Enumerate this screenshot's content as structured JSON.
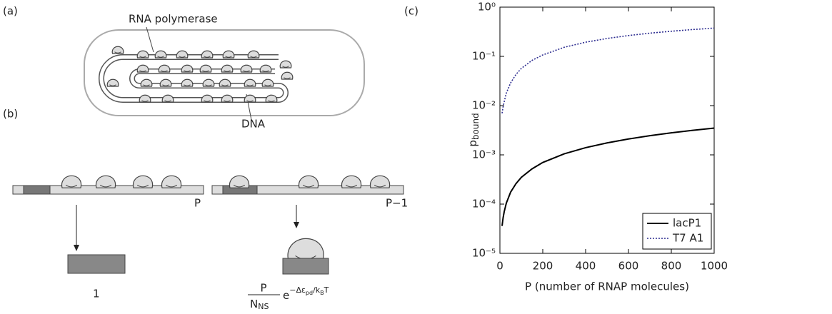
{
  "panels": {
    "a": "(a)",
    "b": "(b)",
    "c": "(c)"
  },
  "diagram_a": {
    "polymerase_label": "RNA polymerase",
    "dna_label": "DNA"
  },
  "diagram_b": {
    "left_count": "P",
    "right_count": "P−1",
    "left_weight": "1",
    "right_weight": {
      "numerator": "P",
      "denominator": {
        "text": "N",
        "subscript": "NS"
      },
      "exponential": {
        "base": "e",
        "parts": [
          {
            "text": "−Δε"
          },
          {
            "sub": "pd"
          },
          {
            "text": "/k"
          },
          {
            "sub": "B"
          },
          {
            "text": "T"
          }
        ]
      }
    }
  },
  "chart_data": {
    "type": "line",
    "x_label": "P (number of RNAP molecules)",
    "y_label": {
      "text": "p",
      "subscript": "bound"
    },
    "log_y": true,
    "legend": "lower right",
    "x": [
      10,
      15,
      20,
      30,
      50,
      75,
      100,
      150,
      200,
      300,
      400,
      500,
      600,
      700,
      800,
      900,
      1000
    ],
    "series": [
      {
        "name": "lacP1",
        "color": "#000000",
        "dash": "solid",
        "values": [
          3.6e-05,
          5.3e-05,
          7e-05,
          0.000105,
          0.000175,
          0.00026,
          0.00035,
          0.00052,
          0.0007,
          0.00105,
          0.0014,
          0.00175,
          0.0021,
          0.00245,
          0.0028,
          0.00315,
          0.0035
        ]
      },
      {
        "name": "T7 A1",
        "color": "#2b2b8f",
        "dash": "dotted",
        "values": [
          0.007,
          0.0095,
          0.012,
          0.018,
          0.029,
          0.043,
          0.057,
          0.083,
          0.107,
          0.153,
          0.194,
          0.231,
          0.265,
          0.296,
          0.324,
          0.351,
          0.375
        ]
      }
    ],
    "xlim": [
      0,
      1000
    ],
    "xticks": [
      0,
      200,
      400,
      600,
      800,
      1000
    ],
    "ylim": [
      1e-05,
      1
    ],
    "yticks": [
      {
        "value": 1e-05,
        "label": "10⁻⁵"
      },
      {
        "value": 0.0001,
        "label": "10⁻⁴"
      },
      {
        "value": 0.001,
        "label": "10⁻³"
      },
      {
        "value": 0.01,
        "label": "10⁻²"
      },
      {
        "value": 0.1,
        "label": "10⁻¹"
      },
      {
        "value": 1,
        "label": "10⁰"
      }
    ]
  }
}
